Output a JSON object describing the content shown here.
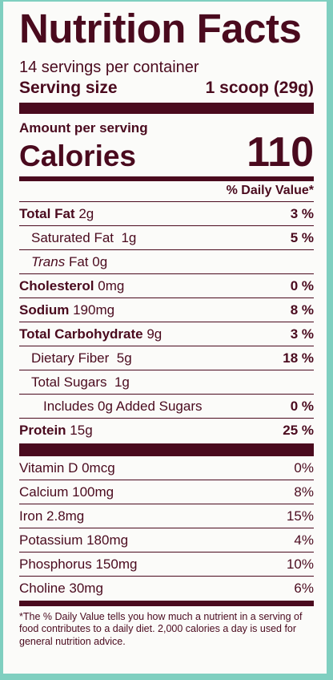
{
  "title": "Nutrition Facts",
  "servings_per_container": "14 servings per container",
  "serving_size": {
    "label": "Serving size",
    "value": "1 scoop (29g)"
  },
  "amount_per_serving": "Amount per serving",
  "calories": {
    "label": "Calories",
    "value": "110"
  },
  "daily_value_header": "% Daily Value*",
  "nutrients": [
    {
      "name": "Total Fat",
      "amount": "2g",
      "dv": "3 %"
    },
    {
      "name": "Saturated Fat",
      "amount": "1g",
      "dv": "5 %"
    },
    {
      "name_italic": "Trans",
      "name": "Fat",
      "amount": "0g",
      "dv": ""
    },
    {
      "name": "Cholesterol",
      "amount": "0mg",
      "dv": "0 %"
    },
    {
      "name": "Sodium",
      "amount": "190mg",
      "dv": "8 %"
    },
    {
      "name": "Total Carbohydrate",
      "amount": "9g",
      "dv": "3 %"
    },
    {
      "name": "Dietary Fiber",
      "amount": "5g",
      "dv": "18 %"
    },
    {
      "name": "Total Sugars",
      "amount": "1g",
      "dv": ""
    },
    {
      "name": "Includes 0g Added Sugars",
      "dv": "0 %"
    },
    {
      "name": "Protein",
      "amount": "15g",
      "dv": "25 %"
    }
  ],
  "vitamins": [
    {
      "name": "Vitamin D 0mcg",
      "dv": "0%"
    },
    {
      "name": "Calcium 100mg",
      "dv": "8%"
    },
    {
      "name": "Iron 2.8mg",
      "dv": "15%"
    },
    {
      "name": "Potassium 180mg",
      "dv": "4%"
    },
    {
      "name": "Phosphorus 150mg",
      "dv": "10%"
    },
    {
      "name": "Choline 30mg",
      "dv": "6%"
    }
  ],
  "footnote": "*The % Daily Value tells you how much a nutrient in a serving of food contributes to a daily diet. 2,000 calories a day is used for general nutrition advice.",
  "colors": {
    "ink": "#4a0a1e",
    "border": "#7fcfc0",
    "panel": "#fbfbf9"
  }
}
